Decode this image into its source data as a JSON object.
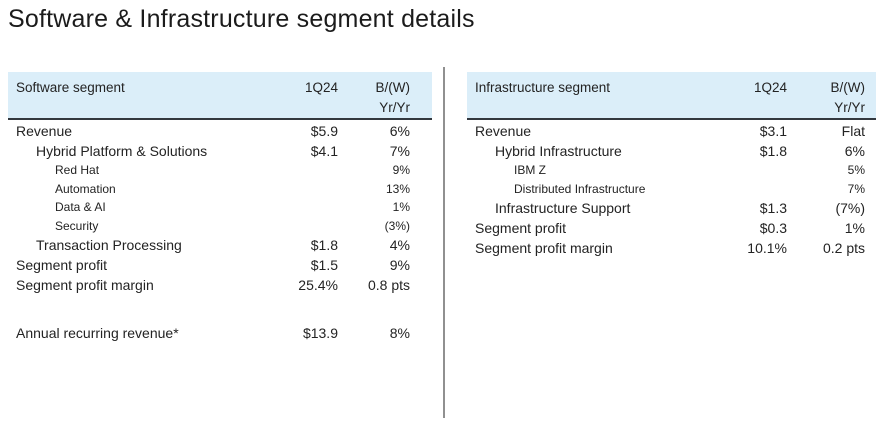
{
  "title": "Software & Infrastructure segment details",
  "colors": {
    "header_bg": "#dbeef9",
    "header_rule": "#33383e",
    "divider": "#909090",
    "text": "#232323"
  },
  "software_table": {
    "header": {
      "label": "Software segment",
      "period": "1Q24",
      "change_line1": "B/(W)",
      "change_line2": "Yr/Yr"
    },
    "rows": [
      {
        "label": "Revenue",
        "value": "$5.9",
        "yoy": "6%",
        "indent": 0
      },
      {
        "label": "Hybrid Platform & Solutions",
        "value": "$4.1",
        "yoy": "7%",
        "indent": 1
      },
      {
        "label": "Red Hat",
        "value": "",
        "yoy": "9%",
        "indent": 2,
        "small": true
      },
      {
        "label": "Automation",
        "value": "",
        "yoy": "13%",
        "indent": 2,
        "small": true
      },
      {
        "label": "Data & AI",
        "value": "",
        "yoy": "1%",
        "indent": 2,
        "small": true
      },
      {
        "label": "Security",
        "value": "",
        "yoy": "(3%)",
        "indent": 2,
        "small": true
      },
      {
        "label": "Transaction Processing",
        "value": "$1.8",
        "yoy": "4%",
        "indent": 1
      },
      {
        "label": "Segment profit",
        "value": "$1.5",
        "yoy": "9%",
        "indent": 0
      },
      {
        "label": "Segment profit margin",
        "value": "25.4%",
        "yoy": "0.8 pts",
        "indent": 0
      },
      {
        "spacer": true
      },
      {
        "label": "Annual recurring revenue*",
        "value": "$13.9",
        "yoy": "8%",
        "indent": 0
      }
    ]
  },
  "infrastructure_table": {
    "header": {
      "label": "Infrastructure segment",
      "period": "1Q24",
      "change_line1": "B/(W)",
      "change_line2": "Yr/Yr"
    },
    "rows": [
      {
        "label": "Revenue",
        "value": "$3.1",
        "yoy": "Flat",
        "indent": 0
      },
      {
        "label": "Hybrid Infrastructure",
        "value": "$1.8",
        "yoy": "6%",
        "indent": 1
      },
      {
        "label": "IBM Z",
        "value": "",
        "yoy": "5%",
        "indent": 2,
        "small": true
      },
      {
        "label": "Distributed Infrastructure",
        "value": "",
        "yoy": "7%",
        "indent": 2,
        "small": true
      },
      {
        "label": "Infrastructure Support",
        "value": "$1.3",
        "yoy": "(7%)",
        "indent": 1
      },
      {
        "label": "Segment profit",
        "value": "$0.3",
        "yoy": "1%",
        "indent": 0
      },
      {
        "label": "Segment profit margin",
        "value": "10.1%",
        "yoy": "0.2 pts",
        "indent": 0
      }
    ]
  }
}
